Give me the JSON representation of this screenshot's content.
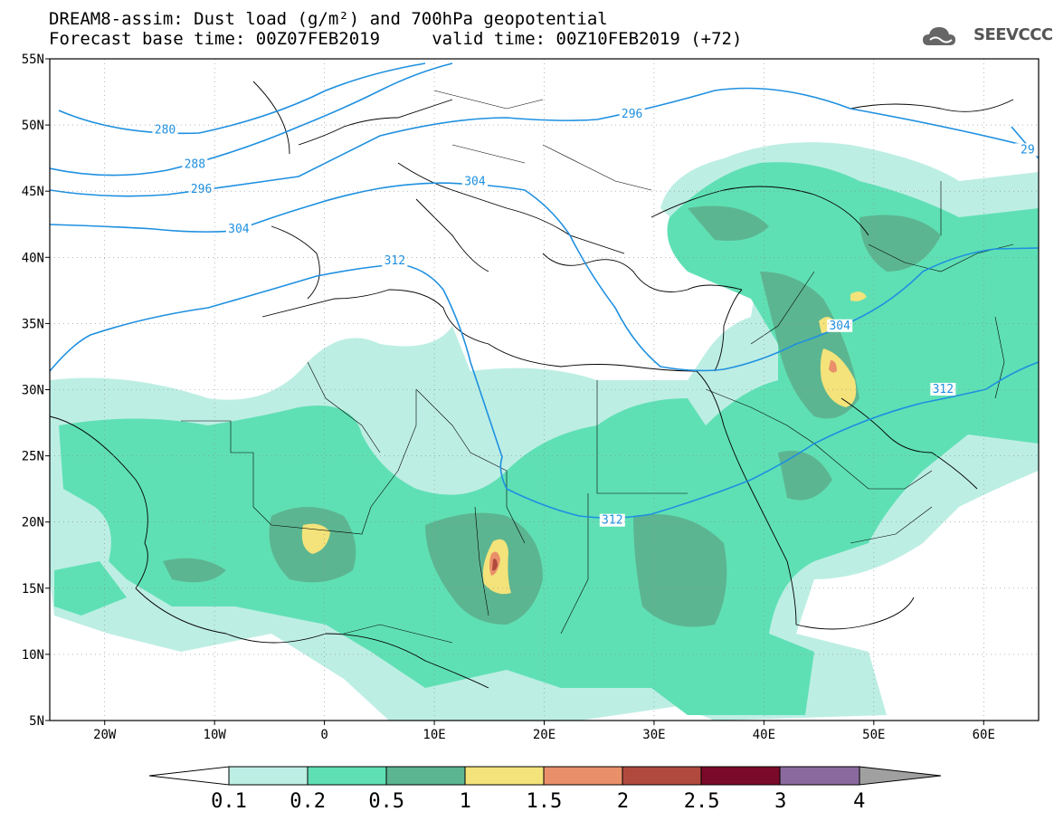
{
  "header": {
    "title_line1": "DREAM8-assim: Dust load (g/m²) and 700hPa geopotential",
    "title_line2": "Forecast base time: 00Z07FEB2019     valid time: 00Z10FEB2019 (+72)"
  },
  "logo": {
    "text": "SEEVCCC",
    "icon": "cloud-icon"
  },
  "colors": {
    "ocean": "#ffffff",
    "land_bg": "#ffffff",
    "contour_line": "#1e90e0",
    "border_line": "#000000",
    "dust_0_1": "#bdeee4",
    "dust_0_2": "#5fe0b4",
    "dust_0_5": "#5cb591",
    "dust_1": "#f3e37a",
    "dust_1_5": "#e9906a",
    "dust_2": "#b04a3e",
    "dust_2_5": "#7b0a2a",
    "dust_3": "#8a6a9e",
    "dust_4": "#a0a0a0"
  },
  "map": {
    "lon_range": [
      -25,
      65
    ],
    "lat_range": [
      5,
      55
    ],
    "lat_ticks": [
      {
        "value": 55,
        "label": "55N"
      },
      {
        "value": 50,
        "label": "50N"
      },
      {
        "value": 45,
        "label": "45N"
      },
      {
        "value": 40,
        "label": "40N"
      },
      {
        "value": 35,
        "label": "35N"
      },
      {
        "value": 30,
        "label": "30N"
      },
      {
        "value": 25,
        "label": "25N"
      },
      {
        "value": 20,
        "label": "20N"
      },
      {
        "value": 15,
        "label": "15N"
      },
      {
        "value": 10,
        "label": "10N"
      },
      {
        "value": 5,
        "label": "5N"
      }
    ],
    "lon_ticks": [
      {
        "value": -20,
        "label": "20W"
      },
      {
        "value": -10,
        "label": "10W"
      },
      {
        "value": 0,
        "label": "0"
      },
      {
        "value": 10,
        "label": "10E"
      },
      {
        "value": 20,
        "label": "20E"
      },
      {
        "value": 30,
        "label": "30E"
      },
      {
        "value": 40,
        "label": "40E"
      },
      {
        "value": 50,
        "label": "50E"
      },
      {
        "value": 60,
        "label": "60E"
      }
    ],
    "contour_labels": [
      {
        "text": "280",
        "lon": -14.5,
        "lat": 49.5
      },
      {
        "text": "288",
        "lon": -11.8,
        "lat": 46.9
      },
      {
        "text": "296",
        "lon": -11.2,
        "lat": 45.0
      },
      {
        "text": "304",
        "lon": -7.8,
        "lat": 42.0
      },
      {
        "text": "312",
        "lon": 6.4,
        "lat": 39.6
      },
      {
        "text": "304",
        "lon": 13.7,
        "lat": 45.6
      },
      {
        "text": "296",
        "lon": 28.0,
        "lat": 50.7
      },
      {
        "text": "304",
        "lon": 46.9,
        "lat": 34.7
      },
      {
        "text": "312",
        "lon": 56.3,
        "lat": 29.9
      },
      {
        "text": "312",
        "lon": 26.2,
        "lat": 20.0
      },
      {
        "text": "29",
        "lon": 64.0,
        "lat": 48.0
      }
    ]
  },
  "colorbar": {
    "labels": [
      "0.1",
      "0.2",
      "0.5",
      "1",
      "1.5",
      "2",
      "2.5",
      "3",
      "4"
    ]
  }
}
